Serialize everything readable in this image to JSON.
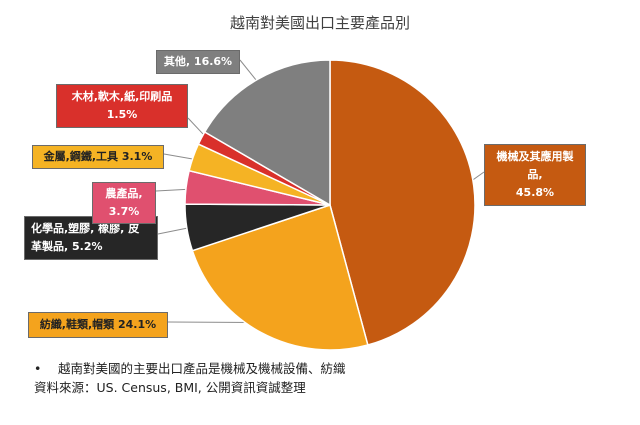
{
  "chart_data": {
    "type": "pie",
    "title": "越南對美國出口主要產品別",
    "slices": [
      {
        "label": "機械及其應用製品",
        "value": 45.8,
        "display": "45.8%",
        "color": "#c55a11",
        "text_color": "#ffffff"
      },
      {
        "label": "紡織,鞋類,帽類",
        "value": 24.1,
        "display": "24.1%",
        "color": "#f4a31d",
        "text_color": "#222222"
      },
      {
        "label": "化學品,塑膠, 橡膠, 皮革製品",
        "value": 5.2,
        "display": "5.2%",
        "color": "#262626",
        "text_color": "#ffffff"
      },
      {
        "label": "農產品",
        "value": 3.7,
        "display": "3.7%",
        "color": "#e0506f",
        "text_color": "#ffffff"
      },
      {
        "label": "金屬,鋼鐵,工具",
        "value": 3.1,
        "display": "3.1%",
        "color": "#f5b324",
        "text_color": "#222222"
      },
      {
        "label": "木材,軟木,紙,印刷品",
        "value": 1.5,
        "display": "1.5%",
        "color": "#d9302b",
        "text_color": "#ffffff"
      },
      {
        "label": "其他",
        "value": 16.6,
        "display": "16.6%",
        "color": "#7f7f7f",
        "text_color": "#ffffff"
      }
    ]
  },
  "labels": {
    "machinery_line1": "機械及其應用製品,",
    "machinery_line2": "45.8%",
    "textiles": "紡織,鞋類,帽類 24.1%",
    "chemicals_line1": "化學品,塑膠, 橡膠, 皮",
    "chemicals_line2": "革製品, 5.2%",
    "agri": "農產品, 3.7%",
    "metals": "金屬,鋼鐵,工具 3.1%",
    "wood_line1": "木材,軟木,紙,印刷品",
    "wood_line2": "1.5%",
    "other": "其他, 16.6%"
  },
  "footnote": {
    "bullet": "•",
    "line1": "越南對美國的主要出口產品是機械及機械設備、紡織",
    "line2": "資料來源：US. Census, BMI, 公開資訊資誠整理"
  }
}
